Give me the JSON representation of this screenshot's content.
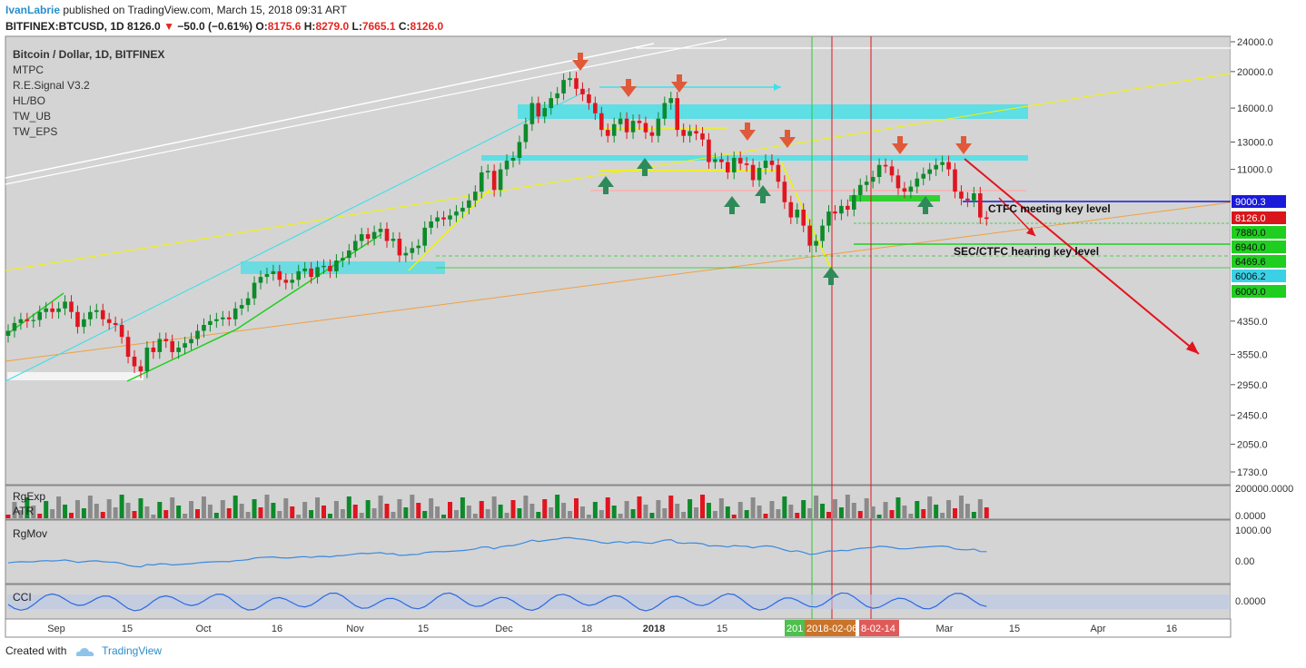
{
  "header": {
    "author": "IvanLabrie",
    "published_text": "published on TradingView.com, March 15, 2018 09:31 ART",
    "symbol": "BITFINEX:BTCUSD, 1D",
    "last": "8126.0",
    "change": "−50.0 (−0.61%)",
    "o_label": "O:",
    "o": "8175.6",
    "h_label": "H:",
    "h": "8279.0",
    "l_label": "L:",
    "l": "7665.1",
    "c_label": "C:",
    "c": "8126.0"
  },
  "footer": {
    "created_with": "Created with",
    "brand": "TradingView"
  },
  "chart_data": {
    "type": "candlestick",
    "title": "Bitcoin / Dollar, 1D, BITFINEX",
    "indicators_list": [
      "MTPC",
      "R.E.Signal V3.2",
      "HL/BO",
      "TW_UB",
      "TW_EPS"
    ],
    "y_scale": "log",
    "y_ticks": [
      "24000.0",
      "20000.0",
      "16000.0",
      "13000.0",
      "11000.0",
      "4350.0",
      "3550.0",
      "2950.0",
      "2450.0",
      "2050.0",
      "1730.0"
    ],
    "x_ticks": [
      "Sep",
      "15",
      "Oct",
      "16",
      "Nov",
      "15",
      "Dec",
      "18",
      "2018",
      "15",
      "Mar",
      "15",
      "Apr",
      "16"
    ],
    "price_labels": [
      {
        "value": "9000.3",
        "color": "#1a1adb"
      },
      {
        "value": "8126.0",
        "color": "#d9161b"
      },
      {
        "value": "7880.0",
        "color": "#1fcf1f"
      },
      {
        "value": "6940.0",
        "color": "#1fcf1f"
      },
      {
        "value": "6469.6",
        "color": "#1fcf1f"
      },
      {
        "value": "6006.2",
        "color": "#3ad1e6"
      },
      {
        "value": "6000.0",
        "color": "#1fcf1f"
      }
    ],
    "date_labels": [
      "201",
      "2018-02-06",
      "8-02-14"
    ],
    "annotations": [
      "CTFC meeting key level",
      "SEC/CTFC hearing key level"
    ],
    "series_daily": {
      "start": "2017-08-22",
      "close": [
        4100,
        4300,
        4400,
        4350,
        4380,
        4600,
        4700,
        4600,
        4700,
        4900,
        4600,
        4200,
        4400,
        4600,
        4650,
        4400,
        4300,
        4250,
        3950,
        3500,
        3300,
        3200,
        3700,
        3600,
        3900,
        3850,
        3600,
        3700,
        3800,
        3900,
        4100,
        4250,
        4350,
        4400,
        4450,
        4400,
        4700,
        4800,
        5000,
        5500,
        5700,
        5800,
        5900,
        5600,
        5500,
        5600,
        5900,
        6000,
        5700,
        6050,
        6100,
        5900,
        6300,
        6400,
        6700,
        7100,
        7400,
        7200,
        7500,
        7650,
        7100,
        7200,
        6500,
        6600,
        6800,
        6900,
        7700,
        8000,
        8200,
        8100,
        8300,
        8500,
        8700,
        9100,
        9600,
        10800,
        10900,
        9700,
        11000,
        11600,
        11800,
        13000,
        14500,
        16500,
        15200,
        16000,
        17000,
        17500,
        19000,
        19200,
        18000,
        17400,
        16500,
        15500,
        14000,
        13500,
        14500,
        15000,
        13800,
        14800,
        14600,
        13800,
        13500,
        15000,
        16500,
        17000,
        14000,
        13500,
        13900,
        13700,
        13200,
        11500,
        11700,
        11500,
        10800,
        11800,
        11400,
        11300,
        10300,
        11100,
        11600,
        11300,
        10200,
        9000,
        8200,
        8600,
        7800,
        6900,
        7100,
        7800,
        8500,
        8400,
        8800,
        8600,
        9400,
        10000,
        10200,
        10500,
        11300,
        11200,
        10600,
        9800,
        9600,
        9900,
        10400,
        10700,
        11000,
        11300,
        11500,
        11000,
        9600,
        9200,
        9100,
        9500,
        8200,
        8126
      ],
      "last": 8126.0
    },
    "panes": [
      {
        "name": "RgExp ATR",
        "ticks": [
          "200000.0000",
          "0.0000"
        ]
      },
      {
        "name": "RgMov",
        "ticks": [
          "1000.00",
          "0.00"
        ]
      },
      {
        "name": "CCI",
        "ticks": [
          "0.0000"
        ]
      }
    ]
  },
  "colors": {
    "bg": "#d4d4d4",
    "up": "#0d8a2a",
    "down": "#e0151f",
    "panel": "#ffffff",
    "cyan": "#40e0e8",
    "yellow": "#f3f300",
    "orange": "#f0a040",
    "white_line": "#f4f4f4"
  }
}
